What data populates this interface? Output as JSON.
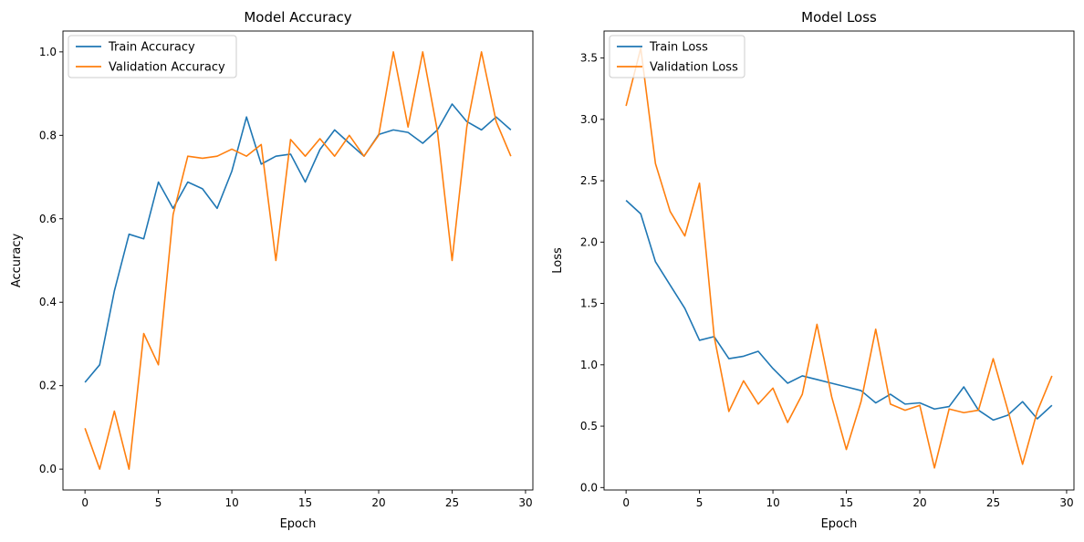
{
  "chart_data": [
    {
      "type": "line",
      "title": "Model Accuracy",
      "xlabel": "Epoch",
      "ylabel": "Accuracy",
      "xlim": [
        -1.5,
        30.5
      ],
      "ylim": [
        -0.05,
        1.05
      ],
      "xticks": [
        0,
        5,
        10,
        15,
        20,
        25,
        30
      ],
      "xtick_labels": [
        "0",
        "5",
        "10",
        "15",
        "20",
        "25",
        "30"
      ],
      "yticks": [
        0.0,
        0.2,
        0.4,
        0.6,
        0.8,
        1.0
      ],
      "ytick_labels": [
        "0.0",
        "0.2",
        "0.4",
        "0.6",
        "0.8",
        "1.0"
      ],
      "grid": false,
      "legend": "upper-left",
      "x": [
        0,
        1,
        2,
        3,
        4,
        5,
        6,
        7,
        8,
        9,
        10,
        11,
        12,
        13,
        14,
        15,
        16,
        17,
        18,
        19,
        20,
        21,
        22,
        23,
        24,
        25,
        26,
        27,
        28,
        29
      ],
      "series": [
        {
          "name": "Train Accuracy",
          "color": "#1f77b4",
          "values": [
            0.208,
            0.25,
            0.427,
            0.563,
            0.552,
            0.688,
            0.625,
            0.688,
            0.672,
            0.625,
            0.714,
            0.844,
            0.731,
            0.75,
            0.755,
            0.688,
            0.766,
            0.813,
            0.781,
            0.75,
            0.802,
            0.813,
            0.807,
            0.781,
            0.813,
            0.875,
            0.833,
            0.813,
            0.844,
            0.813
          ]
        },
        {
          "name": "Validation Accuracy",
          "color": "#ff7f0e",
          "values": [
            0.098,
            0.0,
            0.139,
            0.0,
            0.325,
            0.25,
            0.61,
            0.75,
            0.745,
            0.75,
            0.767,
            0.75,
            0.778,
            0.5,
            0.79,
            0.75,
            0.792,
            0.75,
            0.8,
            0.75,
            0.8,
            1.0,
            0.82,
            1.0,
            0.81,
            0.5,
            0.82,
            1.0,
            0.833,
            0.75
          ]
        }
      ]
    },
    {
      "type": "line",
      "title": "Model Loss",
      "xlabel": "Epoch",
      "ylabel": "Loss",
      "xlim": [
        -1.5,
        30.5
      ],
      "ylim": [
        -0.02,
        3.72
      ],
      "xticks": [
        0,
        5,
        10,
        15,
        20,
        25,
        30
      ],
      "xtick_labels": [
        "0",
        "5",
        "10",
        "15",
        "20",
        "25",
        "30"
      ],
      "yticks": [
        0.0,
        0.5,
        1.0,
        1.5,
        2.0,
        2.5,
        3.0,
        3.5
      ],
      "ytick_labels": [
        "0.0",
        "0.5",
        "1.0",
        "1.5",
        "2.0",
        "2.5",
        "3.0",
        "3.5"
      ],
      "grid": false,
      "legend": "upper-left",
      "x": [
        0,
        1,
        2,
        3,
        4,
        5,
        6,
        7,
        8,
        9,
        10,
        11,
        12,
        13,
        14,
        15,
        16,
        17,
        18,
        19,
        20,
        21,
        22,
        23,
        24,
        25,
        26,
        27,
        28,
        29
      ],
      "series": [
        {
          "name": "Train Loss",
          "color": "#1f77b4",
          "values": [
            2.34,
            2.23,
            1.84,
            1.65,
            1.46,
            1.2,
            1.23,
            1.05,
            1.07,
            1.11,
            0.97,
            0.85,
            0.91,
            0.88,
            0.85,
            0.82,
            0.79,
            0.69,
            0.76,
            0.68,
            0.69,
            0.64,
            0.66,
            0.82,
            0.63,
            0.55,
            0.59,
            0.7,
            0.56,
            0.67
          ]
        },
        {
          "name": "Validation Loss",
          "color": "#ff7f0e",
          "values": [
            3.11,
            3.58,
            2.64,
            2.25,
            2.05,
            2.48,
            1.23,
            0.62,
            0.87,
            0.68,
            0.81,
            0.53,
            0.76,
            1.33,
            0.74,
            0.31,
            0.7,
            1.29,
            0.68,
            0.63,
            0.67,
            0.16,
            0.64,
            0.61,
            0.63,
            1.05,
            0.63,
            0.19,
            0.62,
            0.91
          ]
        }
      ]
    }
  ]
}
